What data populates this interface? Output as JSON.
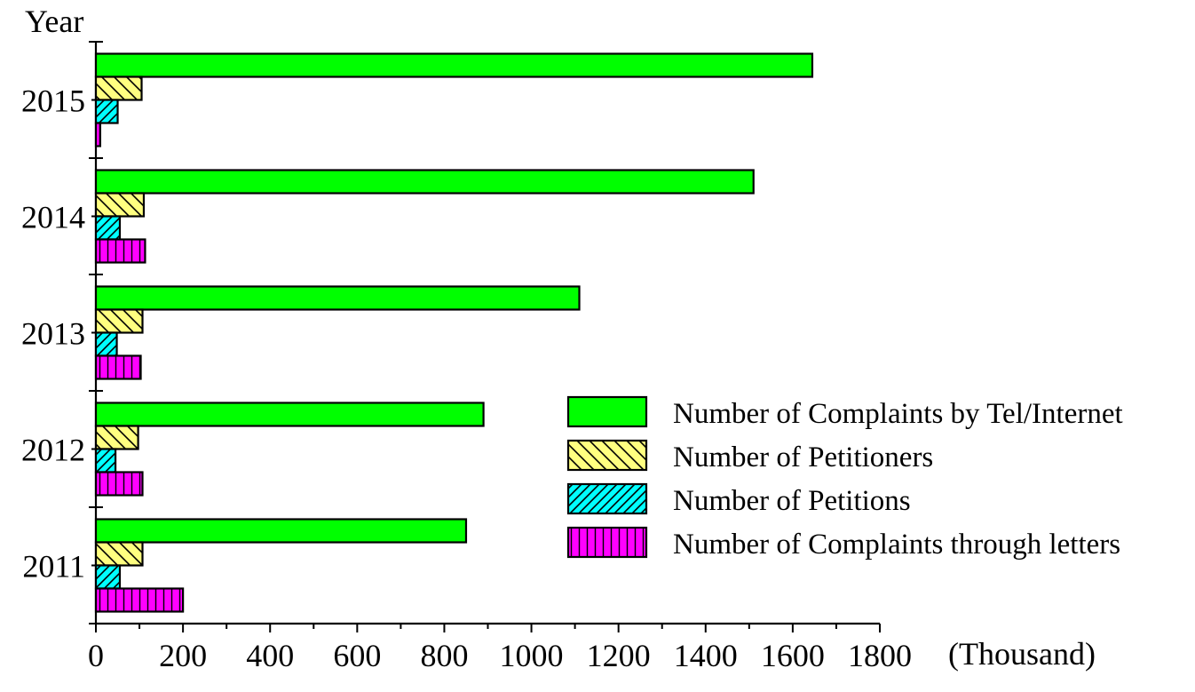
{
  "chart_data": {
    "type": "bar",
    "orientation": "horizontal",
    "title": "",
    "ylabel": "Year",
    "xlabel": "(Thousand)",
    "xlim": [
      0,
      1800
    ],
    "xticks": [
      "0",
      "200",
      "400",
      "600",
      "800",
      "1000",
      "1200",
      "1400",
      "1600",
      "1800"
    ],
    "categories": [
      "2015",
      "2014",
      "2013",
      "2012",
      "2011"
    ],
    "grid": false,
    "legend_position": "right",
    "series": [
      {
        "name": "Number of Complaints by Tel/Internet",
        "color": "#00ff00",
        "pattern": "solid",
        "values": [
          1645,
          1510,
          1110,
          890,
          850
        ]
      },
      {
        "name": "Number of Petitioners",
        "color": "#ffff80",
        "pattern": "back-diagonal",
        "values": [
          105,
          110,
          107,
          97,
          107
        ]
      },
      {
        "name": "Number of Petitions",
        "color": "#00ffff",
        "pattern": "forward-diagonal",
        "values": [
          50,
          55,
          48,
          45,
          55
        ]
      },
      {
        "name": "Number of Complaints through letters",
        "color": "#ff00ff",
        "pattern": "vertical",
        "values": [
          10,
          113,
          103,
          107,
          200
        ]
      }
    ]
  }
}
